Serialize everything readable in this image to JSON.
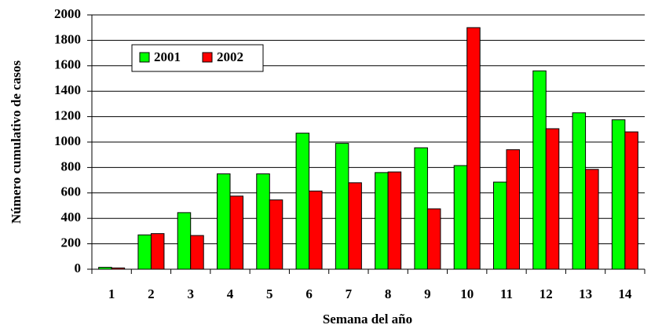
{
  "chart_data": {
    "type": "bar",
    "x_label": "Semana del año",
    "y_label": "Número cumulativo de casos",
    "categories": [
      "1",
      "2",
      "3",
      "4",
      "5",
      "6",
      "7",
      "8",
      "9",
      "10",
      "11",
      "12",
      "13",
      "14"
    ],
    "series": [
      {
        "name": "2001",
        "color": "#00ff00",
        "values": [
          15,
          270,
          445,
          750,
          750,
          1070,
          990,
          760,
          955,
          815,
          685,
          1560,
          1230,
          1175
        ]
      },
      {
        "name": "2002",
        "color": "#ff0000",
        "values": [
          10,
          280,
          265,
          575,
          545,
          615,
          680,
          765,
          475,
          1900,
          940,
          1105,
          785,
          1080
        ]
      }
    ],
    "ylim": [
      0,
      2000
    ],
    "yticks": [
      0,
      200,
      400,
      600,
      800,
      1000,
      1200,
      1400,
      1600,
      1800,
      2000
    ],
    "grid": true,
    "legend": "top-left"
  }
}
